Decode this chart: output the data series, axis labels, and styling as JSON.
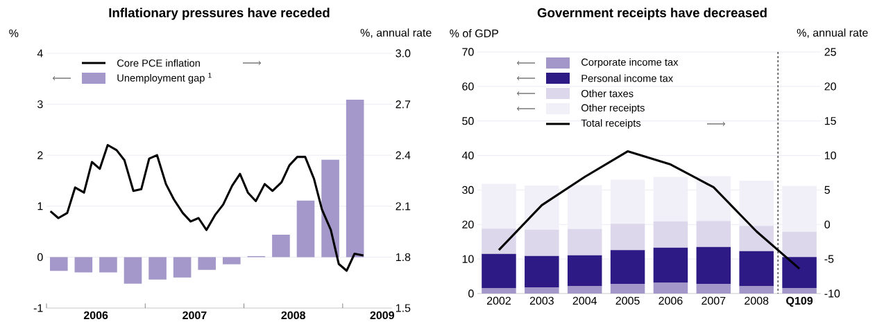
{
  "chart_data": [
    {
      "type": "bar",
      "title": "Inflationary pressures have receded",
      "ylabel": "%",
      "y2label": "%, annual rate",
      "xlim": [
        2006,
        2009.5
      ],
      "xticks": [
        {
          "value": 2006,
          "label": null
        },
        {
          "value": 2007,
          "label": null
        },
        {
          "value": 2008,
          "label": null
        },
        {
          "value": 2009,
          "label": null
        },
        {
          "value": 2006.5,
          "label": "2006"
        },
        {
          "value": 2007.5,
          "label": "2007"
        },
        {
          "value": 2008.5,
          "label": "2008"
        },
        {
          "value": 2009.4,
          "label": "2009"
        }
      ],
      "ylim": [
        -1,
        4
      ],
      "yticks": [
        -1,
        0,
        1,
        2,
        3,
        4
      ],
      "y2lim": [
        1.5,
        3.0
      ],
      "y2ticks": [
        1.5,
        1.8,
        2.1,
        2.4,
        2.7,
        {
          "value": 3.0,
          "label": "3.0"
        }
      ],
      "grid": "y",
      "legend": "top left",
      "series": [
        {
          "name": "Core PCE inflation",
          "type": "line",
          "axis": "y2",
          "color": "#000000",
          "x": [
            2006.04,
            2006.12,
            2006.21,
            2006.29,
            2006.38,
            2006.46,
            2006.54,
            2006.62,
            2006.71,
            2006.79,
            2006.88,
            2006.96,
            2007.04,
            2007.12,
            2007.21,
            2007.29,
            2007.38,
            2007.46,
            2007.54,
            2007.62,
            2007.71,
            2007.79,
            2007.88,
            2007.96,
            2008.04,
            2008.12,
            2008.21,
            2008.29,
            2008.38,
            2008.46,
            2008.54,
            2008.62,
            2008.71,
            2008.79,
            2008.88,
            2008.96,
            2009.04,
            2009.12,
            2009.21
          ],
          "values": [
            2.07,
            2.03,
            2.06,
            2.21,
            2.18,
            2.36,
            2.32,
            2.46,
            2.43,
            2.37,
            2.19,
            2.2,
            2.38,
            2.4,
            2.23,
            2.14,
            2.06,
            2.01,
            2.03,
            1.96,
            2.05,
            2.11,
            2.22,
            2.29,
            2.18,
            2.13,
            2.23,
            2.19,
            2.24,
            2.34,
            2.39,
            2.39,
            2.26,
            2.08,
            1.96,
            1.76,
            1.72,
            1.82,
            1.81
          ]
        },
        {
          "name": "Unemployment gap $^{1}$",
          "axis": "y",
          "color": "#a398c9",
          "x": [
            2006.125,
            2006.375,
            2006.625,
            2006.875,
            2007.125,
            2007.375,
            2007.625,
            2007.875,
            2008.125,
            2008.375,
            2008.625,
            2008.875,
            2009.125
          ],
          "values": [
            -0.27,
            -0.3,
            -0.3,
            -0.52,
            -0.44,
            -0.4,
            -0.25,
            -0.14,
            0.02,
            0.44,
            1.11,
            1.91,
            3.09
          ]
        }
      ]
    },
    {
      "type": "bar",
      "title": "Government receipts have decreased",
      "ylabel": "% of GDP",
      "y2label": "%, annual rate",
      "categories": [
        "2002",
        "2003",
        "2004",
        "2005",
        "2006",
        "2007",
        "2008",
        "**Q109**"
      ],
      "ylim": [
        0,
        70
      ],
      "yticks": [
        0,
        10,
        20,
        30,
        40,
        50,
        60,
        70
      ],
      "y2lim": [
        -10,
        25
      ],
      "y2ticks": [
        -10,
        -5,
        0,
        5,
        10,
        15,
        20,
        25
      ],
      "grid": "y",
      "legend": "top left",
      "stacked": true,
      "series": [
        {
          "name": "Corporate income tax",
          "axis": "y",
          "color": "#a397c9",
          "values": [
            1.5,
            1.8,
            2.1,
            2.8,
            3.1,
            2.8,
            2.1,
            1.6
          ]
        },
        {
          "name": "Personal income tax",
          "axis": "y",
          "color": "#2e1a84",
          "values": [
            10.0,
            9.1,
            9.0,
            9.8,
            10.2,
            10.7,
            10.2,
            9.0
          ]
        },
        {
          "name": "Other taxes",
          "axis": "y",
          "color": "#dcd7ea",
          "values": [
            7.3,
            7.6,
            7.6,
            7.6,
            7.6,
            7.5,
            7.3,
            7.3
          ]
        },
        {
          "name": "Other receipts",
          "axis": "y",
          "color": "#f1eff8",
          "values": [
            13.0,
            12.8,
            12.7,
            12.8,
            12.9,
            13.0,
            13.1,
            13.3
          ]
        },
        {
          "name": "Total receipts",
          "type": "line",
          "axis": "y2",
          "color": "#000000",
          "values": [
            -3.7,
            2.8,
            6.9,
            10.6,
            8.7,
            5.4,
            -1.0,
            -6.4
          ]
        }
      ]
    }
  ]
}
